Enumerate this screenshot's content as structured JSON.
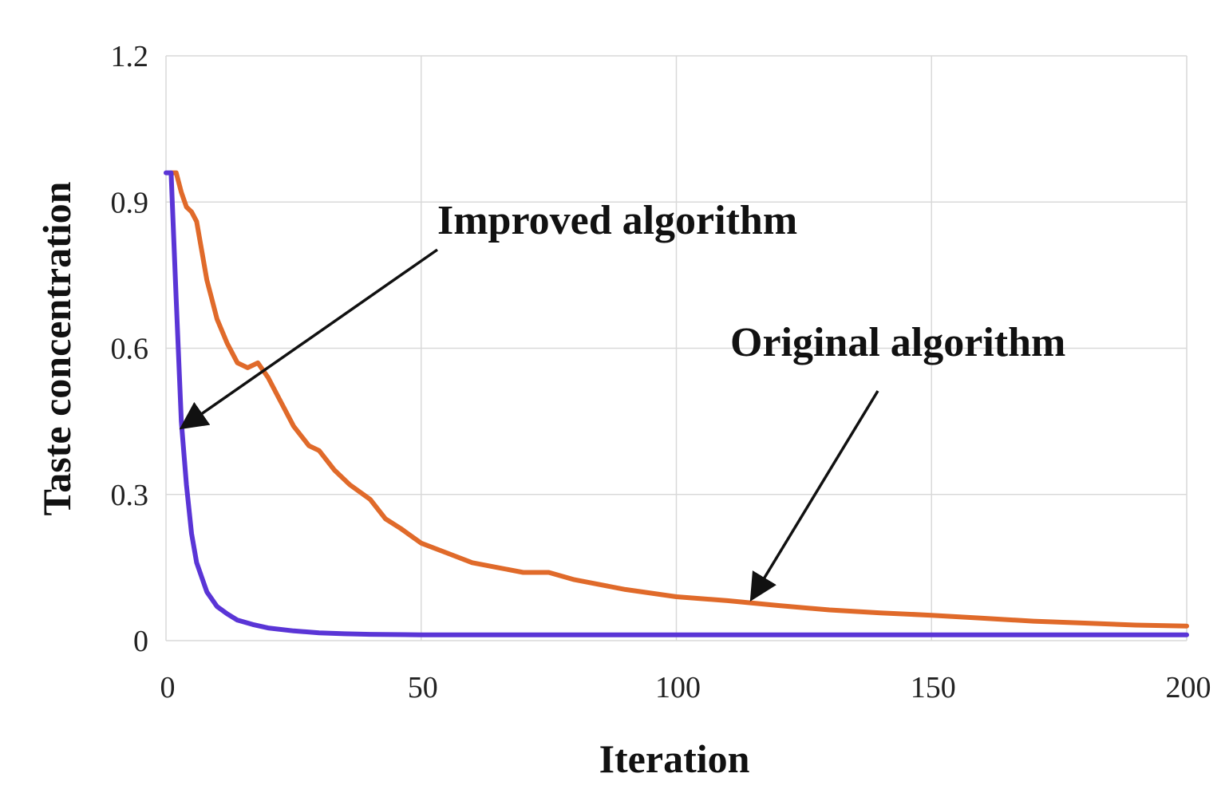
{
  "chart_data": {
    "type": "line",
    "title": "",
    "xlabel": "Iteration",
    "ylabel": "Taste concentration",
    "xlim": [
      0,
      200
    ],
    "ylim": [
      0,
      1.2
    ],
    "x_ticks": [
      0,
      50,
      100,
      150,
      200
    ],
    "x_tick_labels": [
      "0",
      "50",
      "100",
      "150",
      "200"
    ],
    "y_ticks": [
      0,
      0.3,
      0.6,
      0.9,
      1.2
    ],
    "y_tick_labels": [
      "0",
      "0.3",
      "0.6",
      "0.9",
      "1.2"
    ],
    "grid": true,
    "series": [
      {
        "name": "Original algorithm",
        "color": "#e06a2a",
        "x": [
          1,
          2,
          3,
          4,
          5,
          6,
          7,
          8,
          9,
          10,
          12,
          14,
          16,
          18,
          20,
          22,
          25,
          28,
          30,
          33,
          36,
          40,
          43,
          46,
          50,
          55,
          60,
          65,
          70,
          75,
          80,
          90,
          100,
          110,
          120,
          130,
          140,
          150,
          160,
          170,
          180,
          190,
          200
        ],
        "values": [
          0.96,
          0.96,
          0.92,
          0.89,
          0.88,
          0.86,
          0.8,
          0.74,
          0.7,
          0.66,
          0.61,
          0.57,
          0.56,
          0.57,
          0.54,
          0.5,
          0.44,
          0.4,
          0.39,
          0.35,
          0.32,
          0.29,
          0.25,
          0.23,
          0.2,
          0.18,
          0.16,
          0.15,
          0.14,
          0.14,
          0.125,
          0.105,
          0.09,
          0.082,
          0.072,
          0.063,
          0.057,
          0.052,
          0.046,
          0.04,
          0.036,
          0.032,
          0.03
        ]
      },
      {
        "name": "Improved algorithm",
        "color": "#5a35d6",
        "x": [
          0,
          1,
          2,
          3,
          4,
          5,
          6,
          8,
          10,
          12,
          14,
          17,
          20,
          25,
          30,
          35,
          40,
          50,
          60,
          80,
          100,
          150,
          200
        ],
        "values": [
          0.96,
          0.96,
          0.7,
          0.45,
          0.32,
          0.22,
          0.16,
          0.1,
          0.07,
          0.055,
          0.042,
          0.033,
          0.026,
          0.02,
          0.016,
          0.014,
          0.013,
          0.012,
          0.012,
          0.012,
          0.012,
          0.012,
          0.012
        ]
      }
    ],
    "annotations": [
      {
        "text": "Improved algorithm",
        "target_series": "Improved algorithm",
        "target_x": 3.5,
        "target_y": 0.44
      },
      {
        "text": "Original algorithm",
        "target_series": "Original algorithm",
        "target_x": 115,
        "target_y": 0.09
      }
    ]
  }
}
